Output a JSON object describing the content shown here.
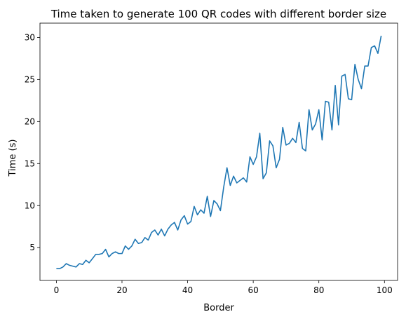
{
  "chart_data": {
    "type": "line",
    "title": "Time taken to generate 100 QR codes with different border size",
    "xlabel": "Border",
    "ylabel": "Time (s)",
    "xlim": [
      -5,
      104
    ],
    "ylim": [
      1.1,
      31.7
    ],
    "xticks": [
      0,
      20,
      40,
      60,
      80,
      100
    ],
    "yticks": [
      5,
      10,
      15,
      20,
      25,
      30
    ],
    "grid": false,
    "series": [
      {
        "color": "#1f77b4",
        "x": [
          0,
          1,
          2,
          3,
          4,
          5,
          6,
          7,
          8,
          9,
          10,
          11,
          12,
          13,
          14,
          15,
          16,
          17,
          18,
          19,
          20,
          21,
          22,
          23,
          24,
          25,
          26,
          27,
          28,
          29,
          30,
          31,
          32,
          33,
          34,
          35,
          36,
          37,
          38,
          39,
          40,
          41,
          42,
          43,
          44,
          45,
          46,
          47,
          48,
          49,
          50,
          51,
          52,
          53,
          54,
          55,
          56,
          57,
          58,
          59,
          60,
          61,
          62,
          63,
          64,
          65,
          66,
          67,
          68,
          69,
          70,
          71,
          72,
          73,
          74,
          75,
          76,
          77,
          78,
          79,
          80,
          81,
          82,
          83,
          84,
          85,
          86,
          87,
          88,
          89,
          90,
          91,
          92,
          93,
          94,
          95,
          96,
          97,
          98,
          99
        ],
        "values": [
          2.5,
          2.5,
          2.7,
          3.1,
          2.9,
          2.8,
          2.7,
          3.1,
          3.0,
          3.5,
          3.2,
          3.7,
          4.2,
          4.2,
          4.3,
          4.8,
          3.9,
          4.3,
          4.5,
          4.3,
          4.3,
          5.2,
          4.8,
          5.2,
          6.0,
          5.5,
          5.6,
          6.2,
          5.9,
          6.8,
          7.1,
          6.5,
          7.2,
          6.4,
          7.2,
          7.7,
          8.0,
          7.1,
          8.3,
          8.8,
          7.8,
          8.1,
          9.9,
          8.9,
          9.5,
          9.1,
          11.1,
          8.7,
          10.6,
          10.2,
          9.4,
          12.2,
          14.5,
          12.4,
          13.5,
          12.7,
          13.0,
          13.3,
          12.8,
          15.8,
          14.9,
          15.8,
          18.6,
          13.2,
          13.9,
          17.7,
          17.1,
          14.5,
          15.5,
          19.3,
          17.2,
          17.4,
          18.0,
          17.5,
          19.9,
          16.8,
          16.5,
          21.4,
          19.0,
          19.7,
          21.4,
          17.8,
          22.4,
          22.3,
          19.0,
          24.3,
          19.6,
          25.4,
          25.6,
          22.7,
          22.6,
          26.8,
          25.0,
          23.9,
          26.6,
          26.6,
          28.8,
          29.0,
          28.1,
          30.2
        ]
      }
    ]
  }
}
